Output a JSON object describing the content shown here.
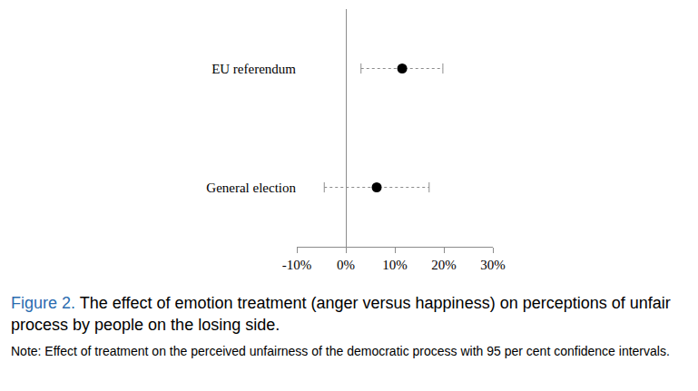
{
  "chart_data": {
    "type": "scatter",
    "figure_label": "Figure 2.",
    "title": "The effect of emotion treatment (anger versus happiness) on perceptions of unfair process by people on the losing side.",
    "subtitle": "Note: Effect of treatment on the perceived unfairness of the democratic process with 95 per cent confidence intervals.",
    "categories": [
      "EU referendum",
      "General election"
    ],
    "values": [
      11.5,
      6.3
    ],
    "ci_low": [
      3.1,
      -4.4
    ],
    "ci_high": [
      19.8,
      17.0
    ],
    "color": "#000000",
    "orientation": "horizontal",
    "marker": "circle",
    "line_style": "dot",
    "grid": false,
    "xlim": [
      -10,
      30
    ],
    "xticks": [
      {
        "value": -10,
        "label": "-10%"
      },
      {
        "value": 0,
        "label": "0%"
      },
      {
        "value": 10,
        "label": "10%"
      },
      {
        "value": 20,
        "label": "20%"
      },
      {
        "value": 30,
        "label": "30%"
      }
    ]
  }
}
